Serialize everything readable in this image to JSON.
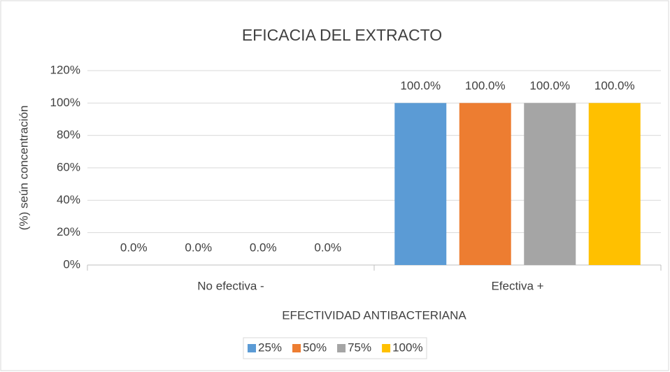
{
  "chart_data": {
    "type": "bar",
    "title": "EFICACIA DEL EXTRACTO",
    "x_label": "EFECTIVIDAD ANTIBACTERIANA",
    "y_label": "(%) seún concentración",
    "categories": [
      "No efectiva -",
      "Efectiva +"
    ],
    "series": [
      {
        "name": "25%",
        "color": "#5b9bd5",
        "values": [
          0,
          100
        ],
        "value_labels": [
          "0.0%",
          "100.0%"
        ]
      },
      {
        "name": "50%",
        "color": "#ed7d31",
        "values": [
          0,
          100
        ],
        "value_labels": [
          "0.0%",
          "100.0%"
        ]
      },
      {
        "name": "75%",
        "color": "#a5a5a5",
        "values": [
          0,
          100
        ],
        "value_labels": [
          "0.0%",
          "100.0%"
        ]
      },
      {
        "name": "100%",
        "color": "#ffc000",
        "values": [
          0,
          100
        ],
        "value_labels": [
          "0.0%",
          "100.0%"
        ]
      }
    ],
    "ylim": [
      0,
      120
    ],
    "yticks": [
      {
        "value": 0,
        "label": "0%"
      },
      {
        "value": 20,
        "label": "20%"
      },
      {
        "value": 40,
        "label": "40%"
      },
      {
        "value": 60,
        "label": "60%"
      },
      {
        "value": 80,
        "label": "80%"
      },
      {
        "value": 100,
        "label": "100%"
      },
      {
        "value": 120,
        "label": "120%"
      }
    ],
    "grid": true,
    "legend": "bottom"
  }
}
